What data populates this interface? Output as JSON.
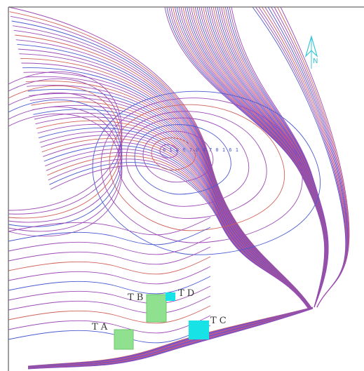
{
  "map": {
    "colors": {
      "contour_purple": "#9c4ab6",
      "contour_red": "#d0625a",
      "contour_blue": "#4a5ad0",
      "zone_green": "#8fe08f",
      "zone_cyan": "#17e3e6",
      "north_arrow": "#37c6d6",
      "frame": "#6b6b6b"
    },
    "north_arrow": {
      "label": "N",
      "icon": "north-arrow-icon"
    },
    "dashed_label_text": "6 1 8 8 7 0 4 7 0   1   6 1",
    "sites": [
      {
        "id": "TA",
        "label": "T A",
        "fill": "#8fe08f",
        "icon": "zone-square-icon"
      },
      {
        "id": "TB",
        "label": "T B",
        "fill": "#8fe08f",
        "icon": "zone-square-icon"
      },
      {
        "id": "TC",
        "label": "T C",
        "fill": "#17e3e6",
        "icon": "zone-square-icon"
      },
      {
        "id": "TD",
        "label": "T D",
        "fill": "#17e3e6",
        "icon": "zone-square-icon"
      }
    ]
  }
}
